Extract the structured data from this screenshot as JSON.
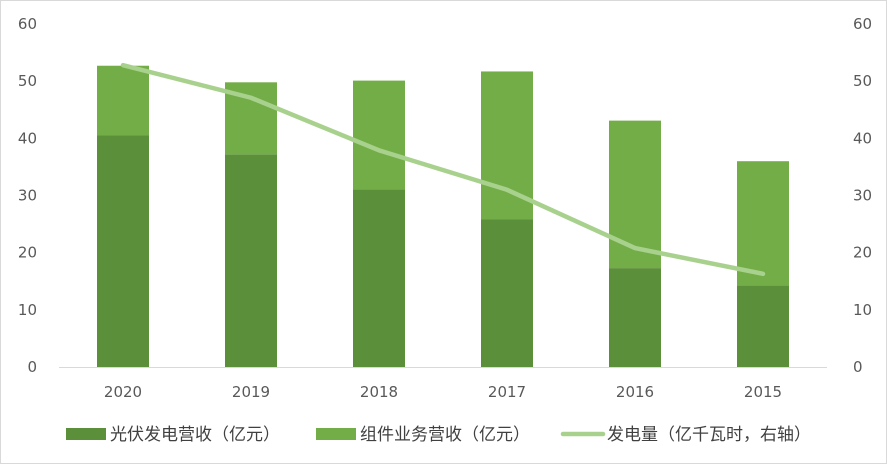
{
  "chart_data": {
    "type": "bar",
    "stacked": true,
    "categories": [
      "2020",
      "2019",
      "2018",
      "2017",
      "2016",
      "2015"
    ],
    "series": [
      {
        "name": "光伏发电营收（亿元）",
        "type": "bar",
        "axis": "left",
        "values": [
          40.5,
          37.2,
          31.1,
          25.8,
          17.3,
          14.3
        ],
        "color": "#5b8f3a"
      },
      {
        "name": "组件业务营收（亿元）",
        "type": "bar",
        "axis": "left",
        "values": [
          12.2,
          12.6,
          19.0,
          25.9,
          25.8,
          21.7
        ],
        "color": "#73ad47"
      },
      {
        "name": "发电量（亿千瓦时，右轴）",
        "type": "line",
        "axis": "right",
        "values": [
          52.8,
          47.1,
          37.9,
          31.0,
          20.8,
          16.3
        ],
        "color": "#a9d18e"
      }
    ],
    "ylim": [
      0,
      60
    ],
    "y2lim": [
      0,
      60
    ],
    "yticks": [
      "0",
      "10",
      "20",
      "30",
      "40",
      "50",
      "60"
    ],
    "y2ticks": [
      "0",
      "10",
      "20",
      "30",
      "40",
      "50",
      "60"
    ],
    "grid": false,
    "legend_position": "bottom"
  }
}
